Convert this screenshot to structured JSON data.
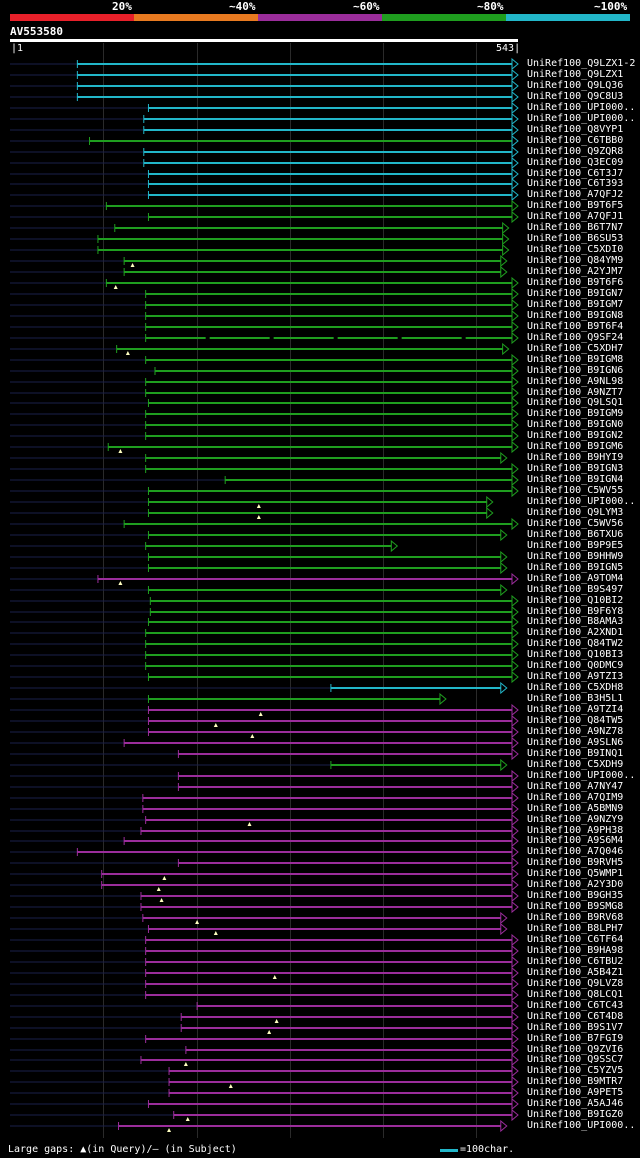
{
  "scale": {
    "labels": [
      "20%",
      "~40%",
      "~60%",
      "~80%",
      "~100%"
    ],
    "colors": [
      "#e8202a",
      "#e87a20",
      "#9b2d9b",
      "#1f9e1f",
      "#22b6c9"
    ]
  },
  "query": {
    "id": "AV553580",
    "start": "1",
    "end": "543",
    "length": 543
  },
  "legend": {
    "text": "Large gaps: ▲(in Query)/– (in Subject)",
    "key_text": "=100char."
  },
  "hits": [
    {
      "label": "UniRef100_Q9LZX1-2",
      "color": "#22b6c9",
      "start": 72,
      "end": 543,
      "dash": 0,
      "arrow": "#22b6c9",
      "tri": null
    },
    {
      "label": "UniRef100_Q9LZX1",
      "color": "#22b6c9",
      "start": 72,
      "end": 543,
      "dash": 0,
      "arrow": "#22b6c9",
      "tri": null
    },
    {
      "label": "UniRef100_Q9LQ36",
      "color": "#22b6c9",
      "start": 72,
      "end": 543,
      "dash": 0,
      "arrow": "#22b6c9",
      "tri": null
    },
    {
      "label": "UniRef100_Q9C8U3",
      "color": "#22b6c9",
      "start": 72,
      "end": 543,
      "dash": 0,
      "arrow": "#22b6c9",
      "tri": null
    },
    {
      "label": "UniRef100_UPI000..",
      "color": "#22b6c9",
      "start": 148,
      "end": 543,
      "dash": 0,
      "arrow": "#22b6c9",
      "tri": null
    },
    {
      "label": "UniRef100_UPI000..",
      "color": "#22b6c9",
      "start": 143,
      "end": 543,
      "dash": 0,
      "arrow": "#22b6c9",
      "tri": null
    },
    {
      "label": "UniRef100_Q8VYP1",
      "color": "#22b6c9",
      "start": 143,
      "end": 543,
      "dash": 0,
      "arrow": "#22b6c9",
      "tri": null
    },
    {
      "label": "UniRef100_C6TBB0",
      "color": "#1f9e1f",
      "start": 85,
      "end": 543,
      "dash": 0,
      "arrow": "#22b6c9",
      "tri": null
    },
    {
      "label": "UniRef100_Q9ZQR8",
      "color": "#22b6c9",
      "start": 143,
      "end": 543,
      "dash": 0,
      "arrow": "#22b6c9",
      "tri": null
    },
    {
      "label": "UniRef100_Q3EC09",
      "color": "#22b6c9",
      "start": 143,
      "end": 543,
      "dash": 0,
      "arrow": "#22b6c9",
      "tri": null
    },
    {
      "label": "UniRef100_C6T3J7",
      "color": "#22b6c9",
      "start": 148,
      "end": 543,
      "dash": 0,
      "arrow": "#22b6c9",
      "tri": null
    },
    {
      "label": "UniRef100_C6T393",
      "color": "#22b6c9",
      "start": 148,
      "end": 543,
      "dash": 0,
      "arrow": "#22b6c9",
      "tri": null
    },
    {
      "label": "UniRef100_A7QFJ2",
      "color": "#22b6c9",
      "start": 148,
      "end": 543,
      "dash": 0,
      "arrow": "#22b6c9",
      "tri": null
    },
    {
      "label": "UniRef100_B9T6F5",
      "color": "#1f9e1f",
      "start": 103,
      "end": 543,
      "dash": 0,
      "arrow": "#1f9e1f",
      "tri": null
    },
    {
      "label": "UniRef100_A7QFJ1",
      "color": "#1f9e1f",
      "start": 148,
      "end": 543,
      "dash": 0,
      "arrow": "#1f9e1f",
      "tri": null
    },
    {
      "label": "UniRef100_B6T7N7",
      "color": "#1f9e1f",
      "start": 112,
      "end": 533,
      "dash": 0,
      "arrow": "#1f9e1f",
      "tri": null
    },
    {
      "label": "UniRef100_B6SU53",
      "color": "#1f9e1f",
      "start": 94,
      "end": 533,
      "dash": 0,
      "arrow": "#1f9e1f",
      "tri": null
    },
    {
      "label": "UniRef100_C5XDI0",
      "color": "#1f9e1f",
      "start": 94,
      "end": 533,
      "dash": 0,
      "arrow": "#1f9e1f",
      "tri": null
    },
    {
      "label": "UniRef100_Q84YM9",
      "color": "#1f9e1f",
      "start": 122,
      "end": 531,
      "dash": 0,
      "arrow": "#1f9e1f",
      "tri": 131
    },
    {
      "label": "UniRef100_A2YJM7",
      "color": "#1f9e1f",
      "start": 122,
      "end": 531,
      "dash": 0,
      "arrow": "#1f9e1f",
      "tri": null
    },
    {
      "label": "UniRef100_B9T6F6",
      "color": "#1f9e1f",
      "start": 103,
      "end": 543,
      "dash": 0,
      "arrow": "#1f9e1f",
      "tri": 113
    },
    {
      "label": "UniRef100_B9IGN7",
      "color": "#1f9e1f",
      "start": 145,
      "end": 543,
      "dash": 0,
      "arrow": "#1f9e1f",
      "tri": null
    },
    {
      "label": "UniRef100_B9IGM7",
      "color": "#1f9e1f",
      "start": 145,
      "end": 543,
      "dash": 0,
      "arrow": "#1f9e1f",
      "tri": null
    },
    {
      "label": "UniRef100_B9IGN8",
      "color": "#1f9e1f",
      "start": 145,
      "end": 543,
      "dash": 0,
      "arrow": "#1f9e1f",
      "tri": null
    },
    {
      "label": "UniRef100_B9T6F4",
      "color": "#1f9e1f",
      "start": 145,
      "end": 543,
      "dash": 0,
      "arrow": "#1f9e1f",
      "tri": null
    },
    {
      "label": "UniRef100_Q9SF24",
      "color": "#1f9e1f",
      "start": 145,
      "end": 543,
      "dash": 1,
      "arrow": "#1f9e1f",
      "tri": null
    },
    {
      "label": "UniRef100_C5XDH7",
      "color": "#1f9e1f",
      "start": 114,
      "end": 533,
      "dash": 0,
      "arrow": "#1f9e1f",
      "tri": 126
    },
    {
      "label": "UniRef100_B9IGM8",
      "color": "#1f9e1f",
      "start": 145,
      "end": 543,
      "dash": 0,
      "arrow": "#1f9e1f",
      "tri": null
    },
    {
      "label": "UniRef100_B9IGN6",
      "color": "#1f9e1f",
      "start": 155,
      "end": 543,
      "dash": 0,
      "arrow": "#1f9e1f",
      "tri": null
    },
    {
      "label": "UniRef100_A9NL98",
      "color": "#1f9e1f",
      "start": 145,
      "end": 543,
      "dash": 0,
      "arrow": "#1f9e1f",
      "tri": null
    },
    {
      "label": "UniRef100_A9NZT7",
      "color": "#1f9e1f",
      "start": 145,
      "end": 543,
      "dash": 0,
      "arrow": "#1f9e1f",
      "tri": null
    },
    {
      "label": "UniRef100_Q9LSQ1",
      "color": "#1f9e1f",
      "start": 148,
      "end": 543,
      "dash": 0,
      "arrow": "#1f9e1f",
      "tri": null
    },
    {
      "label": "UniRef100_B9IGM9",
      "color": "#1f9e1f",
      "start": 145,
      "end": 543,
      "dash": 0,
      "arrow": "#1f9e1f",
      "tri": null
    },
    {
      "label": "UniRef100_B9IGN0",
      "color": "#1f9e1f",
      "start": 145,
      "end": 543,
      "dash": 0,
      "arrow": "#1f9e1f",
      "tri": null
    },
    {
      "label": "UniRef100_B9IGN2",
      "color": "#1f9e1f",
      "start": 145,
      "end": 543,
      "dash": 0,
      "arrow": "#1f9e1f",
      "tri": null
    },
    {
      "label": "UniRef100_B9IGM6",
      "color": "#1f9e1f",
      "start": 105,
      "end": 543,
      "dash": 0,
      "arrow": "#1f9e1f",
      "tri": 118
    },
    {
      "label": "UniRef100_B9HYI9",
      "color": "#1f9e1f",
      "start": 145,
      "end": 531,
      "dash": 0,
      "arrow": "#1f9e1f",
      "tri": null
    },
    {
      "label": "UniRef100_B9IGN3",
      "color": "#1f9e1f",
      "start": 145,
      "end": 543,
      "dash": 0,
      "arrow": "#1f9e1f",
      "tri": null
    },
    {
      "label": "UniRef100_B9IGN4",
      "color": "#1f9e1f",
      "start": 230,
      "end": 543,
      "dash": 0,
      "arrow": "#1f9e1f",
      "tri": null
    },
    {
      "label": "UniRef100_C5WV55",
      "color": "#1f9e1f",
      "start": 148,
      "end": 543,
      "dash": 0,
      "arrow": "#1f9e1f",
      "tri": null
    },
    {
      "label": "UniRef100_UPI000..",
      "color": "#1f9e1f",
      "start": 148,
      "end": 516,
      "dash": 0,
      "arrow": "#1f9e1f",
      "tri": 266
    },
    {
      "label": "UniRef100_Q9LYM3",
      "color": "#1f9e1f",
      "start": 148,
      "end": 516,
      "dash": 0,
      "arrow": "#1f9e1f",
      "tri": 266
    },
    {
      "label": "UniRef100_C5WV56",
      "color": "#1f9e1f",
      "start": 122,
      "end": 543,
      "dash": 0,
      "arrow": "#1f9e1f",
      "tri": null
    },
    {
      "label": "UniRef100_B6TXU6",
      "color": "#1f9e1f",
      "start": 148,
      "end": 531,
      "dash": 0,
      "arrow": "#1f9e1f",
      "tri": null
    },
    {
      "label": "UniRef100_B9P9E5",
      "color": "#1f9e1f",
      "start": 145,
      "end": 414,
      "dash": 0,
      "arrow": "#1f9e1f",
      "tri": null
    },
    {
      "label": "UniRef100_B9HHW9",
      "color": "#1f9e1f",
      "start": 148,
      "end": 531,
      "dash": 0,
      "arrow": "#1f9e1f",
      "tri": null
    },
    {
      "label": "UniRef100_B9IGN5",
      "color": "#1f9e1f",
      "start": 148,
      "end": 531,
      "dash": 0,
      "arrow": "#1f9e1f",
      "tri": null
    },
    {
      "label": "UniRef100_A9TOM4",
      "color": "#9b2d9b",
      "start": 94,
      "end": 543,
      "dash": 0,
      "arrow": "#9b2d9b",
      "tri": 118
    },
    {
      "label": "UniRef100_B9S497",
      "color": "#1f9e1f",
      "start": 148,
      "end": 531,
      "dash": 0,
      "arrow": "#1f9e1f",
      "tri": null
    },
    {
      "label": "UniRef100_Q10BI2",
      "color": "#1f9e1f",
      "start": 150,
      "end": 543,
      "dash": 0,
      "arrow": "#1f9e1f",
      "tri": null
    },
    {
      "label": "UniRef100_B9F6Y8",
      "color": "#1f9e1f",
      "start": 150,
      "end": 543,
      "dash": 0,
      "arrow": "#1f9e1f",
      "tri": null
    },
    {
      "label": "UniRef100_B8AMA3",
      "color": "#1f9e1f",
      "start": 148,
      "end": 543,
      "dash": 0,
      "arrow": "#1f9e1f",
      "tri": null
    },
    {
      "label": "UniRef100_A2XND1",
      "color": "#1f9e1f",
      "start": 145,
      "end": 543,
      "dash": 0,
      "arrow": "#1f9e1f",
      "tri": null
    },
    {
      "label": "UniRef100_Q84TW2",
      "color": "#1f9e1f",
      "start": 145,
      "end": 543,
      "dash": 0,
      "arrow": "#1f9e1f",
      "tri": null
    },
    {
      "label": "UniRef100_Q10BI3",
      "color": "#1f9e1f",
      "start": 145,
      "end": 543,
      "dash": 0,
      "arrow": "#1f9e1f",
      "tri": null
    },
    {
      "label": "UniRef100_Q0DMC9",
      "color": "#1f9e1f",
      "start": 145,
      "end": 543,
      "dash": 0,
      "arrow": "#1f9e1f",
      "tri": null
    },
    {
      "label": "UniRef100_A9TZI3",
      "color": "#1f9e1f",
      "start": 148,
      "end": 543,
      "dash": 0,
      "arrow": "#1f9e1f",
      "tri": null
    },
    {
      "label": "UniRef100_C5XDH8",
      "color": "#22b6c9",
      "start": 343,
      "end": 531,
      "dash": 0,
      "arrow": "#22b6c9",
      "tri": null
    },
    {
      "label": "UniRef100_B3H5L1",
      "color": "#1f9e1f",
      "start": 148,
      "end": 466,
      "dash": 0,
      "arrow": "#1f9e1f",
      "tri": null
    },
    {
      "label": "UniRef100_A9TZI4",
      "color": "#9b2d9b",
      "start": 148,
      "end": 543,
      "dash": 0,
      "arrow": "#9b2d9b",
      "tri": 268
    },
    {
      "label": "UniRef100_Q84TW5",
      "color": "#9b2d9b",
      "start": 148,
      "end": 543,
      "dash": 0,
      "arrow": "#9b2d9b",
      "tri": 220
    },
    {
      "label": "UniRef100_A9NZ78",
      "color": "#9b2d9b",
      "start": 148,
      "end": 543,
      "dash": 0,
      "arrow": "#9b2d9b",
      "tri": 259
    },
    {
      "label": "UniRef100_A9SLN6",
      "color": "#9b2d9b",
      "start": 122,
      "end": 543,
      "dash": 0,
      "arrow": "#9b2d9b",
      "tri": null
    },
    {
      "label": "UniRef100_B9INQ1",
      "color": "#9b2d9b",
      "start": 180,
      "end": 543,
      "dash": 0,
      "arrow": "#9b2d9b",
      "tri": null
    },
    {
      "label": "UniRef100_C5XDH9",
      "color": "#1f9e1f",
      "start": 343,
      "end": 531,
      "dash": 0,
      "arrow": "#1f9e1f",
      "tri": null
    },
    {
      "label": "UniRef100_UPI000..",
      "color": "#9b2d9b",
      "start": 180,
      "end": 543,
      "dash": 0,
      "arrow": "#9b2d9b",
      "tri": null
    },
    {
      "label": "UniRef100_A7NY47",
      "color": "#9b2d9b",
      "start": 180,
      "end": 543,
      "dash": 0,
      "arrow": "#9b2d9b",
      "tri": null
    },
    {
      "label": "UniRef100_A7QIM9",
      "color": "#9b2d9b",
      "start": 142,
      "end": 543,
      "dash": 0,
      "arrow": "#9b2d9b",
      "tri": null
    },
    {
      "label": "UniRef100_A5BMN9",
      "color": "#9b2d9b",
      "start": 142,
      "end": 543,
      "dash": 0,
      "arrow": "#9b2d9b",
      "tri": null
    },
    {
      "label": "UniRef100_A9NZY9",
      "color": "#9b2d9b",
      "start": 145,
      "end": 543,
      "dash": 0,
      "arrow": "#9b2d9b",
      "tri": 256
    },
    {
      "label": "UniRef100_A9PH38",
      "color": "#9b2d9b",
      "start": 140,
      "end": 543,
      "dash": 0,
      "arrow": "#9b2d9b",
      "tri": null
    },
    {
      "label": "UniRef100_A9S6M4",
      "color": "#9b2d9b",
      "start": 122,
      "end": 543,
      "dash": 0,
      "arrow": "#9b2d9b",
      "tri": null
    },
    {
      "label": "UniRef100_A7Q046",
      "color": "#9b2d9b",
      "start": 72,
      "end": 543,
      "dash": 0,
      "arrow": "#9b2d9b",
      "tri": null
    },
    {
      "label": "UniRef100_B9RVH5",
      "color": "#9b2d9b",
      "start": 180,
      "end": 543,
      "dash": 0,
      "arrow": "#9b2d9b",
      "tri": null
    },
    {
      "label": "UniRef100_Q5WMP1",
      "color": "#9b2d9b",
      "start": 98,
      "end": 543,
      "dash": 0,
      "arrow": "#9b2d9b",
      "tri": 165
    },
    {
      "label": "UniRef100_A2Y3D0",
      "color": "#9b2d9b",
      "start": 98,
      "end": 543,
      "dash": 0,
      "arrow": "#9b2d9b",
      "tri": 159
    },
    {
      "label": "UniRef100_B9GH35",
      "color": "#9b2d9b",
      "start": 140,
      "end": 543,
      "dash": 0,
      "arrow": "#9b2d9b",
      "tri": 162
    },
    {
      "label": "UniRef100_B9SMG8",
      "color": "#9b2d9b",
      "start": 140,
      "end": 543,
      "dash": 0,
      "arrow": "#9b2d9b",
      "tri": null
    },
    {
      "label": "UniRef100_B9RV68",
      "color": "#9b2d9b",
      "start": 142,
      "end": 531,
      "dash": 0,
      "arrow": "#9b2d9b",
      "tri": 200
    },
    {
      "label": "UniRef100_B8LPH7",
      "color": "#9b2d9b",
      "start": 148,
      "end": 531,
      "dash": 0,
      "arrow": "#9b2d9b",
      "tri": 220
    },
    {
      "label": "UniRef100_C6TF64",
      "color": "#9b2d9b",
      "start": 145,
      "end": 543,
      "dash": 0,
      "arrow": "#9b2d9b",
      "tri": null
    },
    {
      "label": "UniRef100_B9HA98",
      "color": "#9b2d9b",
      "start": 145,
      "end": 543,
      "dash": 0,
      "arrow": "#9b2d9b",
      "tri": null
    },
    {
      "label": "UniRef100_C6TBU2",
      "color": "#9b2d9b",
      "start": 145,
      "end": 543,
      "dash": 0,
      "arrow": "#9b2d9b",
      "tri": null
    },
    {
      "label": "UniRef100_A5B4Z1",
      "color": "#9b2d9b",
      "start": 145,
      "end": 543,
      "dash": 0,
      "arrow": "#9b2d9b",
      "tri": 283
    },
    {
      "label": "UniRef100_Q9LVZ8",
      "color": "#9b2d9b",
      "start": 145,
      "end": 543,
      "dash": 0,
      "arrow": "#9b2d9b",
      "tri": null
    },
    {
      "label": "UniRef100_Q8LCQ1",
      "color": "#9b2d9b",
      "start": 145,
      "end": 543,
      "dash": 0,
      "arrow": "#9b2d9b",
      "tri": null
    },
    {
      "label": "UniRef100_C6TC43",
      "color": "#9b2d9b",
      "start": 200,
      "end": 543,
      "dash": 0,
      "arrow": "#9b2d9b",
      "tri": null
    },
    {
      "label": "UniRef100_C6T4D8",
      "color": "#9b2d9b",
      "start": 183,
      "end": 543,
      "dash": 0,
      "arrow": "#9b2d9b",
      "tri": 285
    },
    {
      "label": "UniRef100_B9S1V7",
      "color": "#9b2d9b",
      "start": 183,
      "end": 543,
      "dash": 0,
      "arrow": "#9b2d9b",
      "tri": 277
    },
    {
      "label": "UniRef100_B7FGI9",
      "color": "#9b2d9b",
      "start": 145,
      "end": 543,
      "dash": 0,
      "arrow": "#9b2d9b",
      "tri": null
    },
    {
      "label": "UniRef100_Q9ZVI6",
      "color": "#9b2d9b",
      "start": 188,
      "end": 543,
      "dash": 0,
      "arrow": "#9b2d9b",
      "tri": null
    },
    {
      "label": "UniRef100_Q9SSC7",
      "color": "#9b2d9b",
      "start": 140,
      "end": 543,
      "dash": 0,
      "arrow": "#9b2d9b",
      "tri": 188
    },
    {
      "label": "UniRef100_C5YZV5",
      "color": "#9b2d9b",
      "start": 170,
      "end": 543,
      "dash": 0,
      "arrow": "#9b2d9b",
      "tri": null
    },
    {
      "label": "UniRef100_B9MTR7",
      "color": "#9b2d9b",
      "start": 170,
      "end": 543,
      "dash": 0,
      "arrow": "#9b2d9b",
      "tri": 236
    },
    {
      "label": "UniRef100_A9PET5",
      "color": "#9b2d9b",
      "start": 170,
      "end": 543,
      "dash": 0,
      "arrow": "#9b2d9b",
      "tri": null
    },
    {
      "label": "UniRef100_A5AJ46",
      "color": "#9b2d9b",
      "start": 148,
      "end": 543,
      "dash": 0,
      "arrow": "#9b2d9b",
      "tri": null
    },
    {
      "label": "UniRef100_B9IGZ0",
      "color": "#9b2d9b",
      "start": 175,
      "end": 543,
      "dash": 0,
      "arrow": "#9b2d9b",
      "tri": 190
    },
    {
      "label": "UniRef100_UPI000..",
      "color": "#9b2d9b",
      "start": 116,
      "end": 531,
      "dash": 0,
      "arrow": "#9b2d9b",
      "tri": 170
    }
  ]
}
